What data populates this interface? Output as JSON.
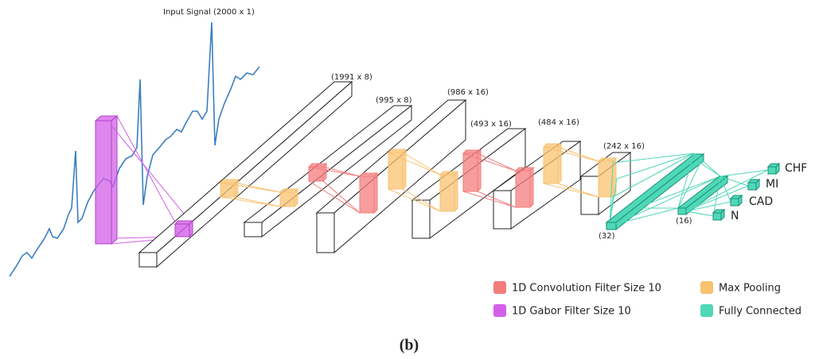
{
  "input_label": "Input Signal (2000 x 1)",
  "layers": [
    {
      "label": "(1991 x 8)"
    },
    {
      "label": "(995 x 8)"
    },
    {
      "label": "(986 x 16)"
    },
    {
      "label": "(493 x 16)"
    },
    {
      "label": "(484 x 16)"
    },
    {
      "label": "(242 x 16)"
    }
  ],
  "dense": [
    {
      "label": "(32)"
    },
    {
      "label": "(16)"
    }
  ],
  "outputs": [
    "CHF",
    "MI",
    "CAD",
    "N"
  ],
  "legend": [
    {
      "label": "1D Convolution Filter Size 10",
      "color": "#f47c7c"
    },
    {
      "label": "Max Pooling",
      "color": "#f9c270"
    },
    {
      "label": "1D Gabor Filter Size 10",
      "color": "#d35fe8"
    },
    {
      "label": "Fully Connected",
      "color": "#4fd8b8"
    }
  ],
  "caption": "(b)"
}
